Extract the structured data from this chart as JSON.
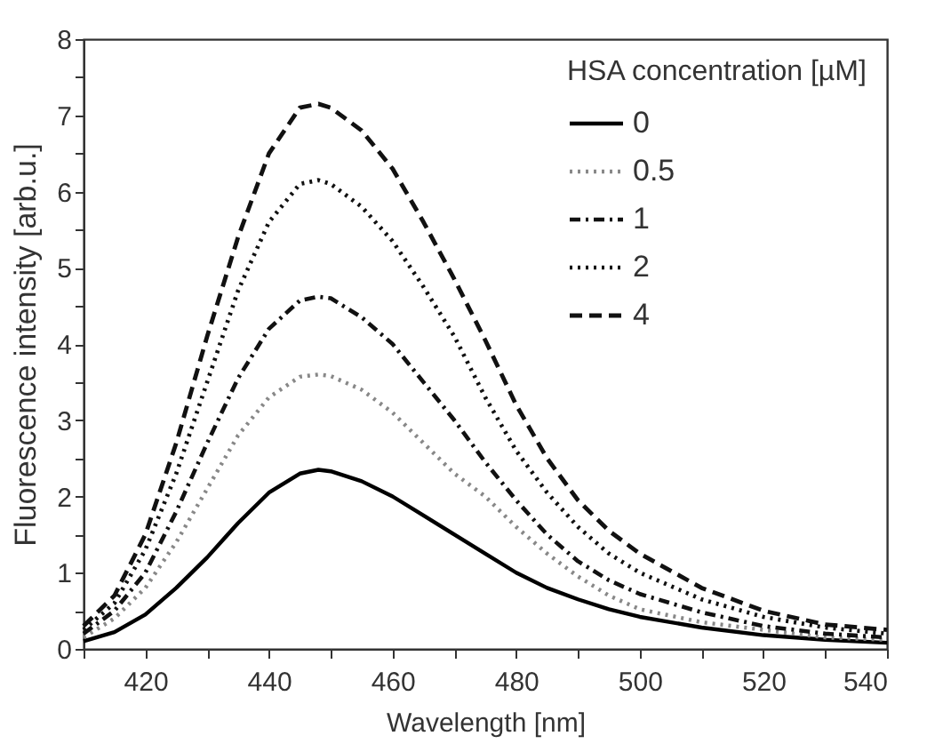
{
  "chart_data": {
    "type": "line",
    "xlabel": "Wavelength [nm]",
    "ylabel": "Fluorescence intensity [arb.u.]",
    "legend_title": "HSA concentration [µM]",
    "legend": "top right",
    "grid": false,
    "marker": "none",
    "xlim": [
      410,
      540
    ],
    "ylim": [
      0,
      8
    ],
    "xticks": [
      {
        "value": 410,
        "label": null
      },
      420,
      {
        "value": 430,
        "label": null
      },
      440,
      {
        "value": 450,
        "label": null
      },
      460,
      {
        "value": 470,
        "label": null
      },
      480,
      {
        "value": 490,
        "label": null
      },
      500,
      {
        "value": 510,
        "label": null
      },
      520,
      {
        "value": 530,
        "label": null
      },
      540
    ],
    "yticks": [
      0,
      {
        "value": 0.5,
        "label": null
      },
      1,
      {
        "value": 1.5,
        "label": null
      },
      2,
      {
        "value": 2.5,
        "label": null
      },
      3,
      {
        "value": 3.5,
        "label": null
      },
      4,
      {
        "value": 4.5,
        "label": null
      },
      5,
      {
        "value": 5.5,
        "label": null
      },
      6,
      {
        "value": 6.5,
        "label": null
      },
      7,
      {
        "value": 7.5,
        "label": null
      },
      8
    ],
    "x": [
      410,
      415,
      420,
      425,
      430,
      435,
      440,
      445,
      448,
      450,
      455,
      460,
      465,
      470,
      475,
      480,
      485,
      490,
      495,
      500,
      510,
      520,
      530,
      540
    ],
    "series": [
      {
        "name": "0",
        "color": "#000000",
        "line_style": "solid",
        "values": [
          0.1,
          0.22,
          0.45,
          0.8,
          1.2,
          1.65,
          2.05,
          2.3,
          2.35,
          2.33,
          2.2,
          2.0,
          1.75,
          1.5,
          1.25,
          1.0,
          0.8,
          0.65,
          0.52,
          0.42,
          0.28,
          0.18,
          0.12,
          0.08
        ]
      },
      {
        "name": "0.5",
        "color": "#888888",
        "line_style": "dotted",
        "values": [
          0.15,
          0.4,
          0.8,
          1.4,
          2.1,
          2.8,
          3.3,
          3.57,
          3.6,
          3.58,
          3.4,
          3.1,
          2.7,
          2.3,
          2.0,
          1.6,
          1.25,
          0.95,
          0.7,
          0.52,
          0.35,
          0.25,
          0.15,
          0.12
        ]
      },
      {
        "name": "1",
        "color": "#111111",
        "line_style": "dashdot",
        "values": [
          0.2,
          0.5,
          1.0,
          1.8,
          2.7,
          3.55,
          4.2,
          4.57,
          4.62,
          4.6,
          4.35,
          4.0,
          3.5,
          3.0,
          2.45,
          1.95,
          1.5,
          1.15,
          0.9,
          0.72,
          0.48,
          0.3,
          0.2,
          0.15
        ]
      },
      {
        "name": "2",
        "color": "#111111",
        "line_style": "dotted",
        "values": [
          0.25,
          0.6,
          1.3,
          2.3,
          3.5,
          4.7,
          5.6,
          6.1,
          6.15,
          6.1,
          5.8,
          5.35,
          4.75,
          4.1,
          3.3,
          2.6,
          2.05,
          1.6,
          1.25,
          1.0,
          0.65,
          0.42,
          0.28,
          0.2
        ]
      },
      {
        "name": "4",
        "color": "#111111",
        "line_style": "dashed",
        "values": [
          0.3,
          0.7,
          1.5,
          2.7,
          4.1,
          5.4,
          6.5,
          7.1,
          7.15,
          7.1,
          6.8,
          6.3,
          5.6,
          4.85,
          4.05,
          3.2,
          2.5,
          1.95,
          1.55,
          1.25,
          0.8,
          0.5,
          0.32,
          0.25
        ]
      }
    ]
  }
}
